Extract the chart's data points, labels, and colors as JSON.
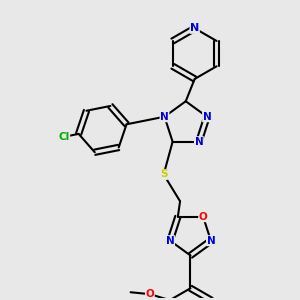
{
  "background_color": "#e8e8e8",
  "bond_color": "#000000",
  "bond_width": 1.5,
  "atom_colors": {
    "N": "#0000dd",
    "O": "#ff0000",
    "S": "#cccc00",
    "Cl": "#00aa00",
    "C": "#000000"
  },
  "font_size": 7.5,
  "label_font_size": 7.0
}
